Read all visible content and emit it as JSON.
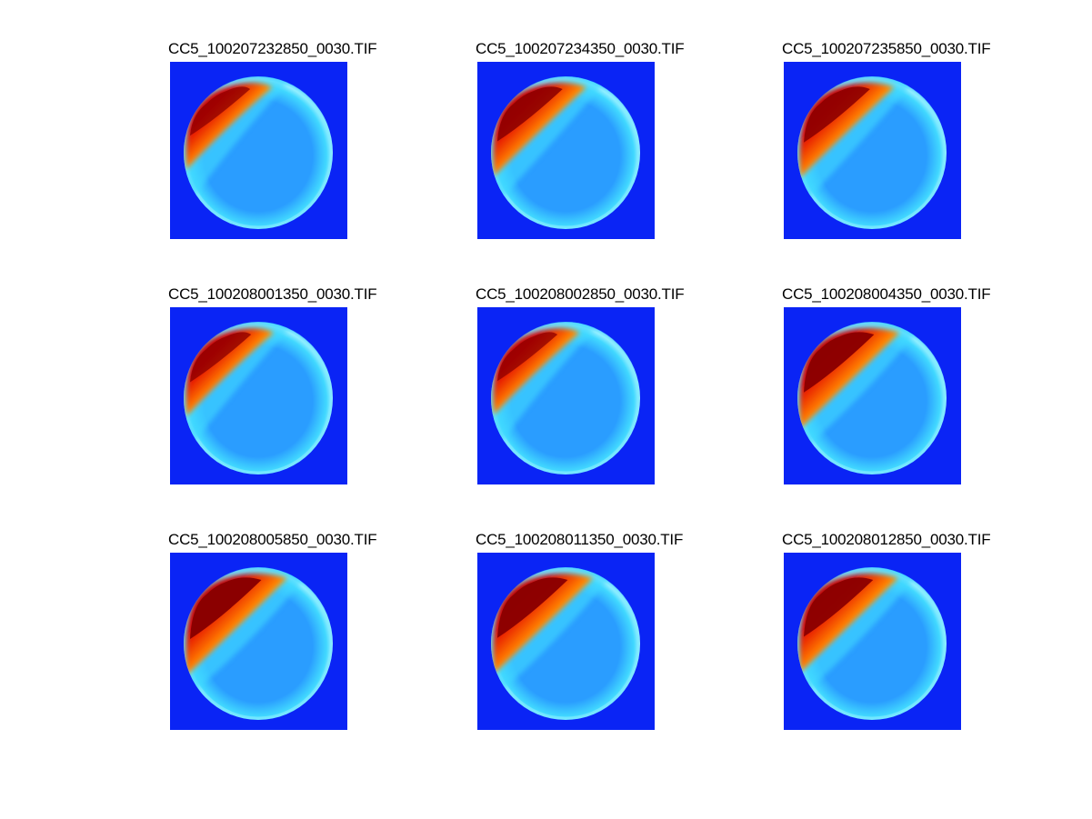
{
  "colors": {
    "background": "#ffffff",
    "image_background": "#0a24f5",
    "sky_low": "#2a9dff",
    "sky_mid": "#41d8ff",
    "aurora_yellow": "#ffe414",
    "aurora_orange": "#ff7a00",
    "aurora_red": "#e10000",
    "aurora_core": "#8b0000"
  },
  "panels": [
    {
      "title": "CC5_100207232850_0030.TIF",
      "aurora_level": 0.45
    },
    {
      "title": "CC5_100207234350_0030.TIF",
      "aurora_level": 0.7
    },
    {
      "title": "CC5_100207235850_0030.TIF",
      "aurora_level": 0.75
    },
    {
      "title": "CC5_100208001350_0030.TIF",
      "aurora_level": 0.5
    },
    {
      "title": "CC5_100208002850_0030.TIF",
      "aurora_level": 0.45
    },
    {
      "title": "CC5_100208004350_0030.TIF",
      "aurora_level": 0.95
    },
    {
      "title": "CC5_100208005850_0030.TIF",
      "aurora_level": 1.0
    },
    {
      "title": "CC5_100208011350_0030.TIF",
      "aurora_level": 0.95
    },
    {
      "title": "CC5_100208012850_0030.TIF",
      "aurora_level": 0.9
    }
  ]
}
